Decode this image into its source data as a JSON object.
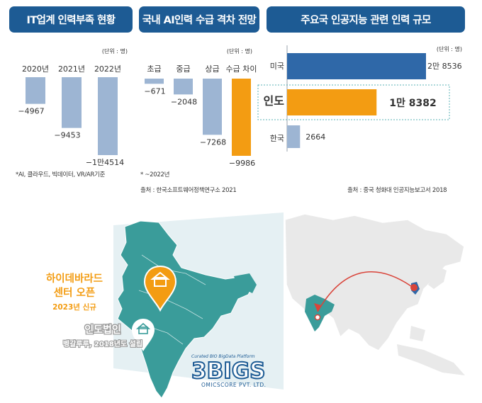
{
  "headers": {
    "h1": "IT업계 인력부족 현황",
    "h2": "국내 AI인력 수급 격차 전망",
    "h3": "주요국 인공지능 관련 인력 규모"
  },
  "chart_data": [
    {
      "type": "bar",
      "title": "IT업계 인력부족 현황",
      "unit_label": "(단위 : 명)",
      "categories": [
        "2020년",
        "2021년",
        "2022년"
      ],
      "values": [
        -4967,
        -9453,
        -14514
      ],
      "value_labels": [
        "−4967",
        "−9453",
        "−1만4514"
      ],
      "color": "#9db5d3",
      "footnote": "*AI, 클라우드, 빅데이터, VR/AR기준"
    },
    {
      "type": "bar",
      "title": "국내 AI인력 수급 격차 전망",
      "unit_label": "(단위 : 명)",
      "categories": [
        "초급",
        "중급",
        "상급",
        "수급 차이"
      ],
      "values": [
        -671,
        -2048,
        -7268,
        -9986
      ],
      "value_labels": [
        "−671",
        "−2048",
        "−7268",
        "−9986"
      ],
      "colors": [
        "#9db5d3",
        "#9db5d3",
        "#9db5d3",
        "#f39c12"
      ],
      "footnote": "* ~2022년",
      "source": "출처 : 한국소프트웨어정책연구소 2021"
    },
    {
      "type": "bar",
      "orientation": "horizontal",
      "title": "주요국 인공지능 관련 인력 규모",
      "unit_label": "(단위 : 명)",
      "categories": [
        "미국",
        "인도",
        "한국"
      ],
      "values": [
        28536,
        18382,
        2664
      ],
      "value_labels": [
        "2만 8536",
        "1만 8382",
        "2664"
      ],
      "colors": [
        "#2f68a8",
        "#f39c12",
        "#9db5d3"
      ],
      "highlight": "인도",
      "source": "출처 : 중국 청화대 인공지능보고서 2018"
    }
  ],
  "map": {
    "center_title_1": "하이데바라드",
    "center_title_2": "센터 오픈",
    "center_sub": "2023년 신규",
    "corp_title": "인도법인",
    "corp_sub": "벵갈루루, 2018년도 설립",
    "logo_tagline": "Curated BIO BigData Platform",
    "logo_main": "3BIGS",
    "logo_sub": "OMICSCORE PVT. LTD.",
    "colors": {
      "india": "#3a9c9a",
      "accent": "#f39c12",
      "text_orange": "#f39c12",
      "asia": "#e9e9e9",
      "arrow": "#d9443a"
    }
  }
}
